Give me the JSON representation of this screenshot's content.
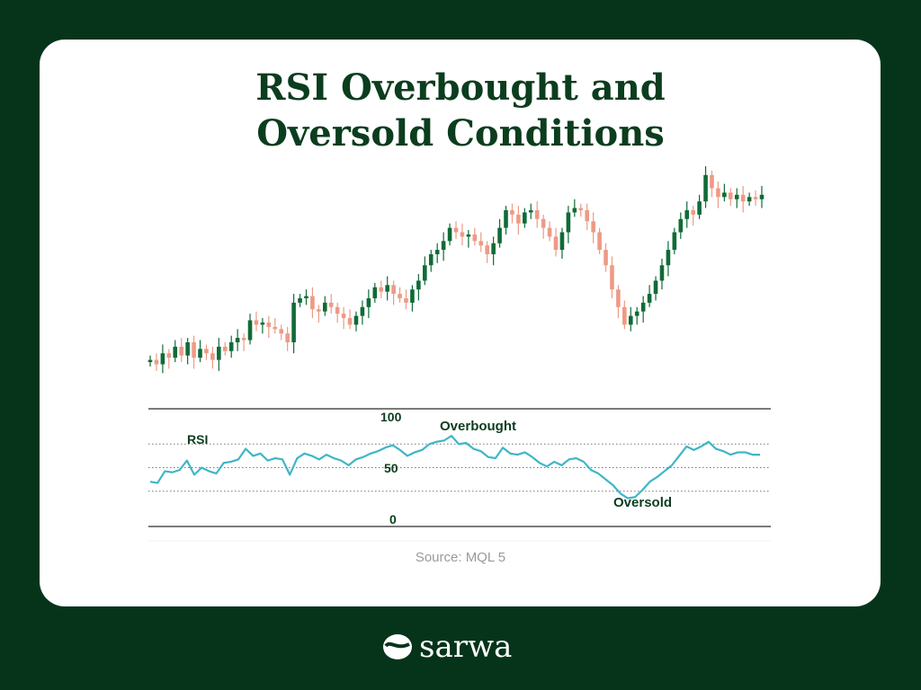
{
  "title_line1": "RSI Overbought and",
  "title_line2": "Oversold Conditions",
  "source": "Source: MQL 5",
  "brand": "sarwa",
  "colors": {
    "background": "#06341a",
    "up": "#0f6b37",
    "down": "#ee9a86",
    "rsi": "#3fb6c6",
    "title": "#0b3d1e"
  },
  "chart_data": [
    {
      "type": "candlestick",
      "title": "",
      "close": [
        12,
        10,
        15,
        13,
        18,
        14,
        20,
        13,
        17,
        15,
        12,
        18,
        16,
        20,
        22,
        21,
        30,
        28,
        29,
        27,
        26,
        24,
        20,
        38,
        40,
        41,
        35,
        34,
        38,
        36,
        33,
        31,
        28,
        32,
        36,
        40,
        45,
        43,
        46,
        42,
        40,
        38,
        44,
        48,
        55,
        60,
        62,
        66,
        72,
        70,
        68,
        69,
        66,
        64,
        60,
        65,
        72,
        80,
        78,
        74,
        79,
        80,
        76,
        72,
        68,
        62,
        70,
        79,
        81,
        80,
        75,
        70,
        62,
        55,
        44,
        36,
        28,
        32,
        34,
        38,
        42,
        48,
        55,
        62,
        70,
        76,
        80,
        78,
        84,
        96,
        90,
        86,
        88,
        85,
        87,
        84,
        86,
        85,
        87
      ],
      "ylim": [
        0,
        100
      ]
    },
    {
      "type": "line",
      "series_name": "RSI",
      "values": [
        38,
        37,
        47,
        46,
        48,
        56,
        44,
        50,
        47,
        45,
        54,
        55,
        57,
        66,
        60,
        62,
        56,
        58,
        57,
        44,
        58,
        62,
        60,
        57,
        61,
        58,
        56,
        52,
        57,
        59,
        62,
        64,
        67,
        69,
        65,
        60,
        63,
        65,
        70,
        72,
        73,
        77,
        70,
        71,
        66,
        64,
        59,
        58,
        67,
        62,
        61,
        63,
        59,
        54,
        51,
        55,
        52,
        57,
        58,
        55,
        48,
        45,
        40,
        35,
        28,
        24,
        25,
        31,
        38,
        42,
        47,
        52,
        60,
        68,
        65,
        68,
        72,
        66,
        64,
        61,
        63,
        63,
        61,
        61
      ],
      "ylim": [
        0,
        100
      ],
      "levels": [
        70,
        50,
        30
      ],
      "tick_labels": {
        "top": "100",
        "mid": "50",
        "bottom": "0"
      },
      "label": "RSI",
      "annotations": {
        "overbought": "Overbought",
        "oversold": "Oversold"
      }
    }
  ]
}
